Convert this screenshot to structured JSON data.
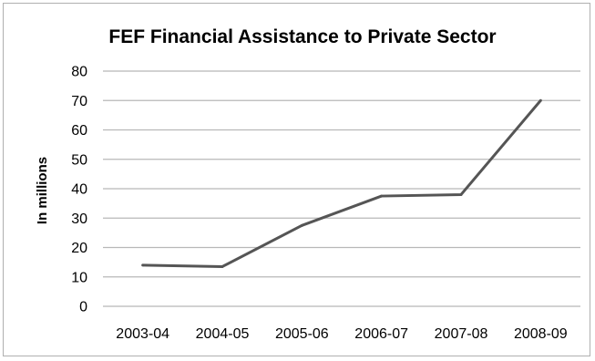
{
  "chart_data": {
    "type": "line",
    "title": "FEF Financial Assistance to Private Sector",
    "xlabel": "",
    "ylabel": "In millions",
    "categories": [
      "2003-04",
      "2004-05",
      "2005-06",
      "2006-07",
      "2007-08",
      "2008-09"
    ],
    "series": [
      {
        "values": [
          14,
          13.5,
          27.5,
          37.5,
          38,
          70
        ],
        "color": "#555555"
      }
    ],
    "ylim": [
      0,
      80
    ],
    "yticks": [
      0,
      10,
      20,
      30,
      40,
      50,
      60,
      70,
      80
    ],
    "grid": true,
    "legend": "none"
  }
}
